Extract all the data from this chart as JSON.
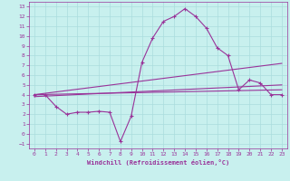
{
  "xlabel": "Windchill (Refroidissement éolien,°C)",
  "xlim": [
    -0.5,
    23.5
  ],
  "ylim": [
    -1.5,
    13.5
  ],
  "xticks": [
    0,
    1,
    2,
    3,
    4,
    5,
    6,
    7,
    8,
    9,
    10,
    11,
    12,
    13,
    14,
    15,
    16,
    17,
    18,
    19,
    20,
    21,
    22,
    23
  ],
  "yticks": [
    -1,
    0,
    1,
    2,
    3,
    4,
    5,
    6,
    7,
    8,
    9,
    10,
    11,
    12,
    13
  ],
  "bg_color": "#c8f0ee",
  "line_color": "#993399",
  "grid_color": "#aadddd",
  "main_series": {
    "x": [
      0,
      1,
      2,
      3,
      4,
      5,
      6,
      7,
      8,
      9,
      10,
      11,
      12,
      13,
      14,
      15,
      16,
      17,
      18,
      19,
      20,
      21,
      22,
      23
    ],
    "y": [
      4.0,
      4.0,
      2.8,
      2.0,
      2.2,
      2.2,
      2.3,
      2.2,
      -0.8,
      1.8,
      7.3,
      9.8,
      11.5,
      12.0,
      12.8,
      12.0,
      10.8,
      8.8,
      8.0,
      4.5,
      5.5,
      5.2,
      4.0,
      4.0
    ]
  },
  "straight_lines": [
    {
      "x": [
        0,
        23
      ],
      "y": [
        4.0,
        7.2
      ]
    },
    {
      "x": [
        0,
        23
      ],
      "y": [
        4.0,
        4.5
      ]
    },
    {
      "x": [
        0,
        23
      ],
      "y": [
        3.8,
        5.0
      ]
    }
  ]
}
